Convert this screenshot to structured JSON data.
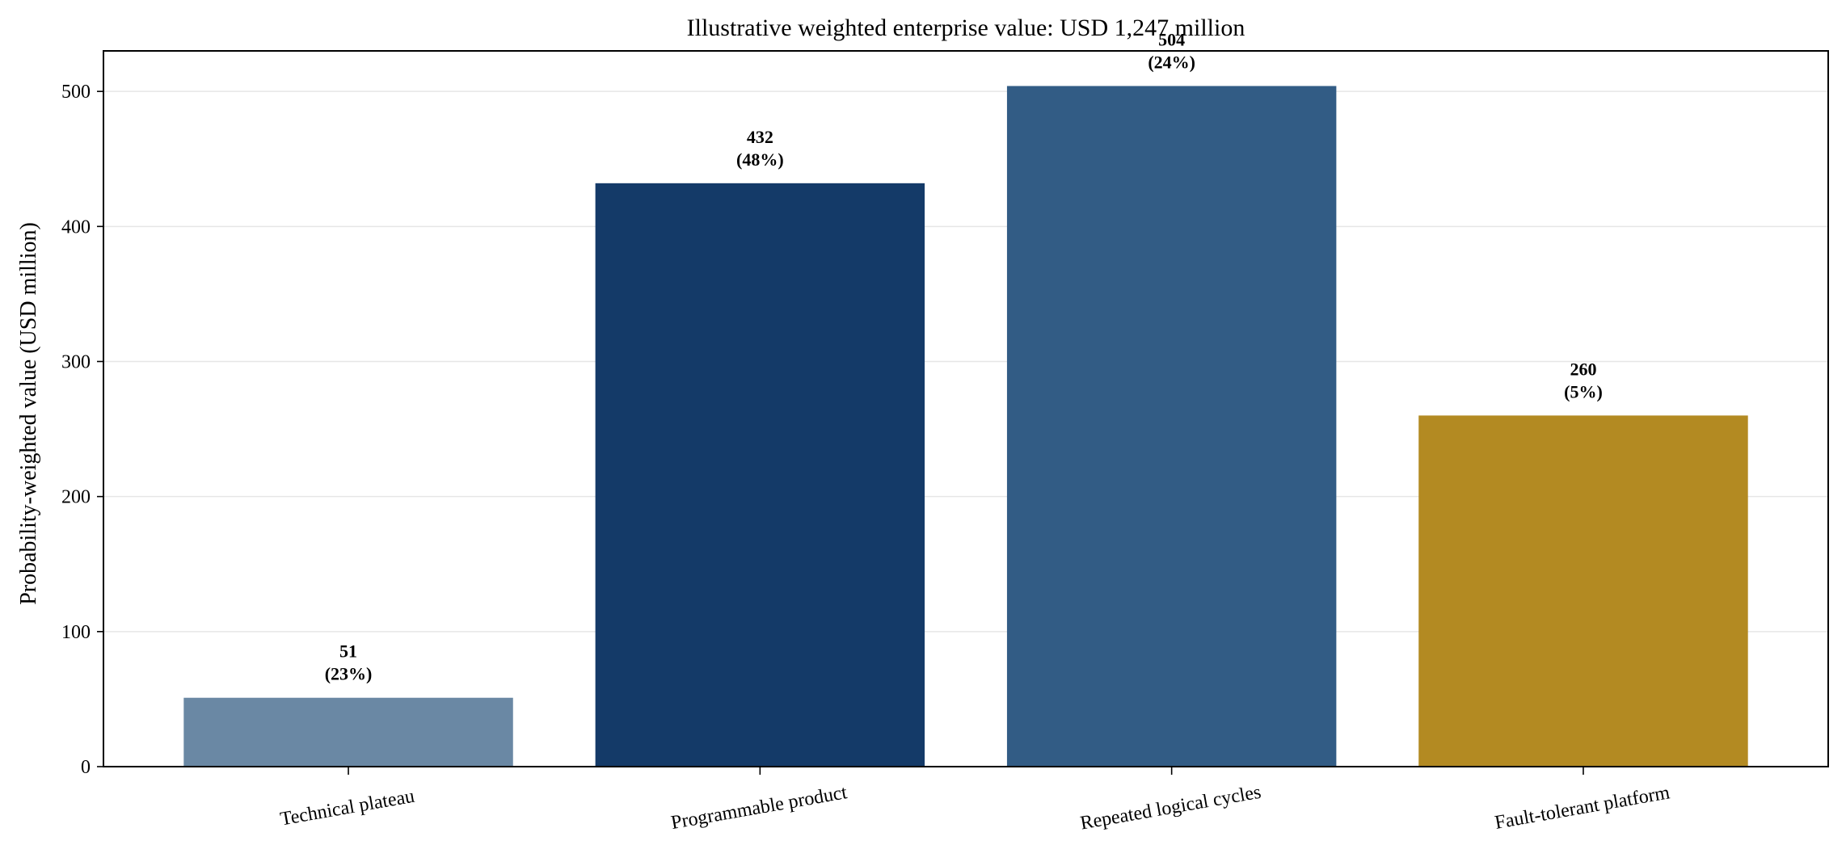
{
  "chart_data": {
    "type": "bar",
    "title": "Illustrative weighted enterprise value: USD 1,247 million",
    "xlabel": "",
    "ylabel": "Probability-weighted value (USD million)",
    "categories": [
      "Technical plateau",
      "Programmable product",
      "Repeated logical cycles",
      "Fault-tolerant platform"
    ],
    "values": [
      51,
      432,
      504,
      260
    ],
    "value_labels": [
      "51",
      "432",
      "504",
      "260"
    ],
    "share_labels": [
      "(23%)",
      "(48%)",
      "(24%)",
      "(5%)"
    ],
    "colors": [
      "#6a88a4",
      "#143a68",
      "#325c85",
      "#b38a22"
    ],
    "ylim": [
      0,
      530
    ],
    "yticks": [
      0,
      100,
      200,
      300,
      400,
      500
    ],
    "ytick_labels": [
      "0",
      "100",
      "200",
      "300",
      "400",
      "500"
    ],
    "grid": "horizontal",
    "legend": "none"
  }
}
